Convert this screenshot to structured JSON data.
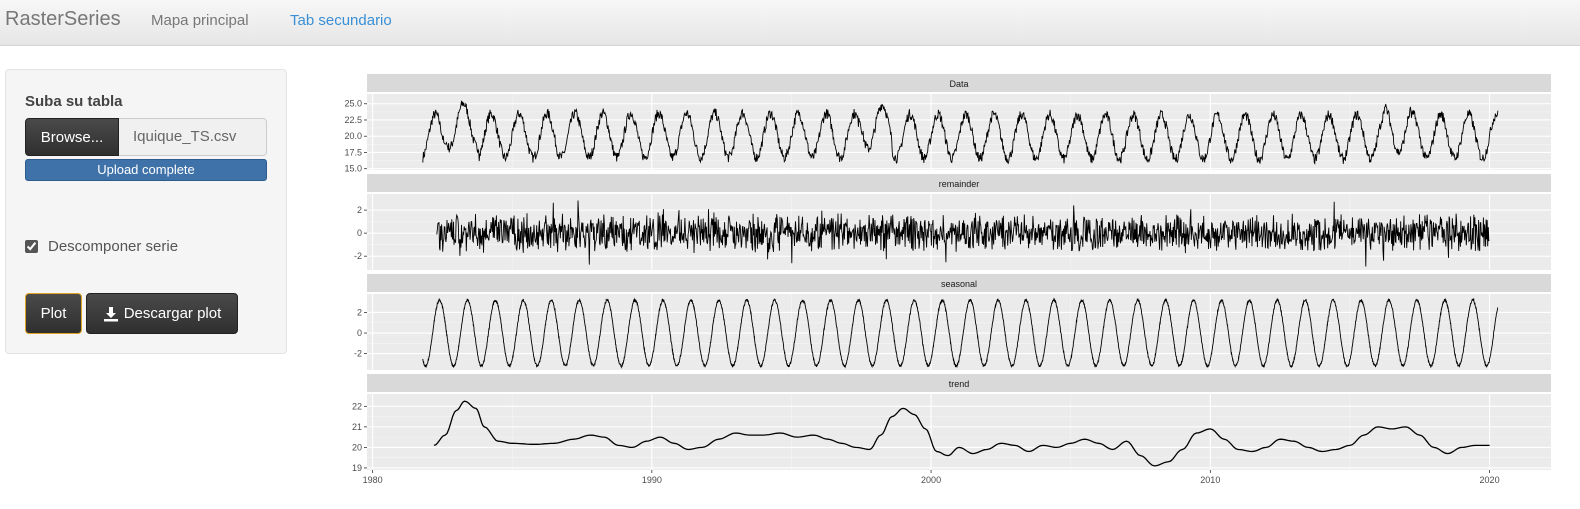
{
  "navbar": {
    "brand": "RasterSeries",
    "tabs": [
      {
        "label": "Mapa principal",
        "active": false
      },
      {
        "label": "Tab secundario",
        "active": true
      }
    ]
  },
  "sidebar": {
    "upload_title": "Suba su tabla",
    "browse_label": "Browse...",
    "file_name": "Iquique_TS.csv",
    "progress_text": "Upload complete",
    "progress_value": 1.0,
    "checkbox_label": "Descomponer serie",
    "checkbox_checked": true,
    "plot_button": "Plot",
    "download_button": "Descargar plot",
    "download_icon": "download-icon"
  },
  "colors": {
    "accent_link": "#3a8fd6",
    "progress_bar": "#3f72a8",
    "button_dark": "#333333",
    "focus_border": "#e0a422"
  },
  "chart_data": {
    "type": "line",
    "x_label": "",
    "x_ticks": [
      1980,
      1990,
      2000,
      2010,
      2020
    ],
    "x_range": [
      1979.8,
      2022.2
    ],
    "series_x_range": [
      1981.8,
      2020.3
    ],
    "panels": [
      {
        "name": "Data",
        "ylim": [
          14.8,
          26.5
        ],
        "y_ticks": [
          {
            "value": 15.0,
            "label": "15.0"
          },
          {
            "value": 17.5,
            "label": "17.5"
          },
          {
            "value": 20.0,
            "label": "20.0"
          },
          {
            "value": 22.5,
            "label": "22.5"
          },
          {
            "value": 25.0,
            "label": "25.0"
          }
        ],
        "description_points_x": [
          1982,
          1985,
          1990,
          1995,
          1997.9,
          2000,
          2005,
          2010,
          2015,
          2016.8,
          2020.3
        ],
        "description_points_y": [
          18,
          24,
          23,
          24,
          26,
          22,
          24,
          23.5,
          24,
          26,
          24.5
        ]
      },
      {
        "name": "remainder",
        "ylim": [
          -3.2,
          3.4
        ],
        "y_ticks": [
          {
            "value": -2,
            "label": "-2"
          },
          {
            "value": 0,
            "label": "0"
          },
          {
            "value": 2,
            "label": "2"
          }
        ],
        "noise_amplitude": 2.5
      },
      {
        "name": "seasonal",
        "ylim": [
          -3.6,
          3.8
        ],
        "y_ticks": [
          {
            "value": -2,
            "label": "-2"
          },
          {
            "value": 0,
            "label": "0"
          },
          {
            "value": 2,
            "label": "2"
          }
        ],
        "amplitude": 3.2,
        "period_years": 1
      },
      {
        "name": "trend",
        "ylim": [
          18.9,
          22.6
        ],
        "y_ticks": [
          {
            "value": 19,
            "label": "19"
          },
          {
            "value": 20,
            "label": "20"
          },
          {
            "value": 21,
            "label": "21"
          },
          {
            "value": 22,
            "label": "22"
          }
        ],
        "x": [
          1982.2,
          1982.6,
          1983.0,
          1983.3,
          1983.7,
          1984.0,
          1984.5,
          1985,
          1985.8,
          1986.5,
          1987.2,
          1987.8,
          1988.3,
          1988.8,
          1989.3,
          1989.8,
          1990.3,
          1990.8,
          1991.3,
          1991.8,
          1992.4,
          1993.0,
          1993.5,
          1994.0,
          1994.6,
          1995.2,
          1995.8,
          1996.3,
          1996.8,
          1997.3,
          1997.8,
          1998.2,
          1998.6,
          1999.0,
          1999.4,
          1999.8,
          2000.2,
          2000.6,
          2001.0,
          2001.5,
          2002.0,
          2002.5,
          2003.0,
          2003.5,
          2004.0,
          2004.5,
          2005.0,
          2005.5,
          2006.0,
          2006.5,
          2007.0,
          2007.5,
          2008.0,
          2008.5,
          2009.0,
          2009.5,
          2010.0,
          2010.5,
          2011.0,
          2011.5,
          2012.0,
          2012.5,
          2013.0,
          2013.5,
          2014.0,
          2014.5,
          2015.0,
          2015.5,
          2016.0,
          2016.5,
          2017.0,
          2017.5,
          2018.0,
          2018.5,
          2019.0,
          2019.5,
          2020.0
        ],
        "y": [
          20.1,
          20.6,
          21.8,
          22.25,
          21.9,
          21.0,
          20.3,
          20.2,
          20.15,
          20.2,
          20.4,
          20.6,
          20.5,
          20.1,
          20.0,
          20.3,
          20.5,
          20.2,
          19.9,
          20.0,
          20.4,
          20.7,
          20.6,
          20.6,
          20.7,
          20.5,
          20.6,
          20.4,
          20.2,
          20.0,
          19.9,
          20.6,
          21.5,
          21.9,
          21.6,
          20.9,
          19.8,
          19.6,
          20.0,
          19.7,
          19.9,
          20.2,
          20.1,
          19.8,
          20.1,
          20.0,
          20.2,
          20.4,
          20.2,
          19.9,
          20.3,
          19.6,
          19.1,
          19.3,
          19.9,
          20.7,
          20.9,
          20.4,
          19.9,
          19.8,
          20.0,
          20.4,
          20.3,
          20.0,
          19.8,
          19.9,
          20.1,
          20.6,
          21.0,
          20.9,
          21.0,
          20.6,
          20.0,
          19.7,
          20.0,
          20.1,
          20.1
        ]
      }
    ],
    "grid": true,
    "background": "#ebebeb",
    "strip_background": "#d9d9d9"
  }
}
